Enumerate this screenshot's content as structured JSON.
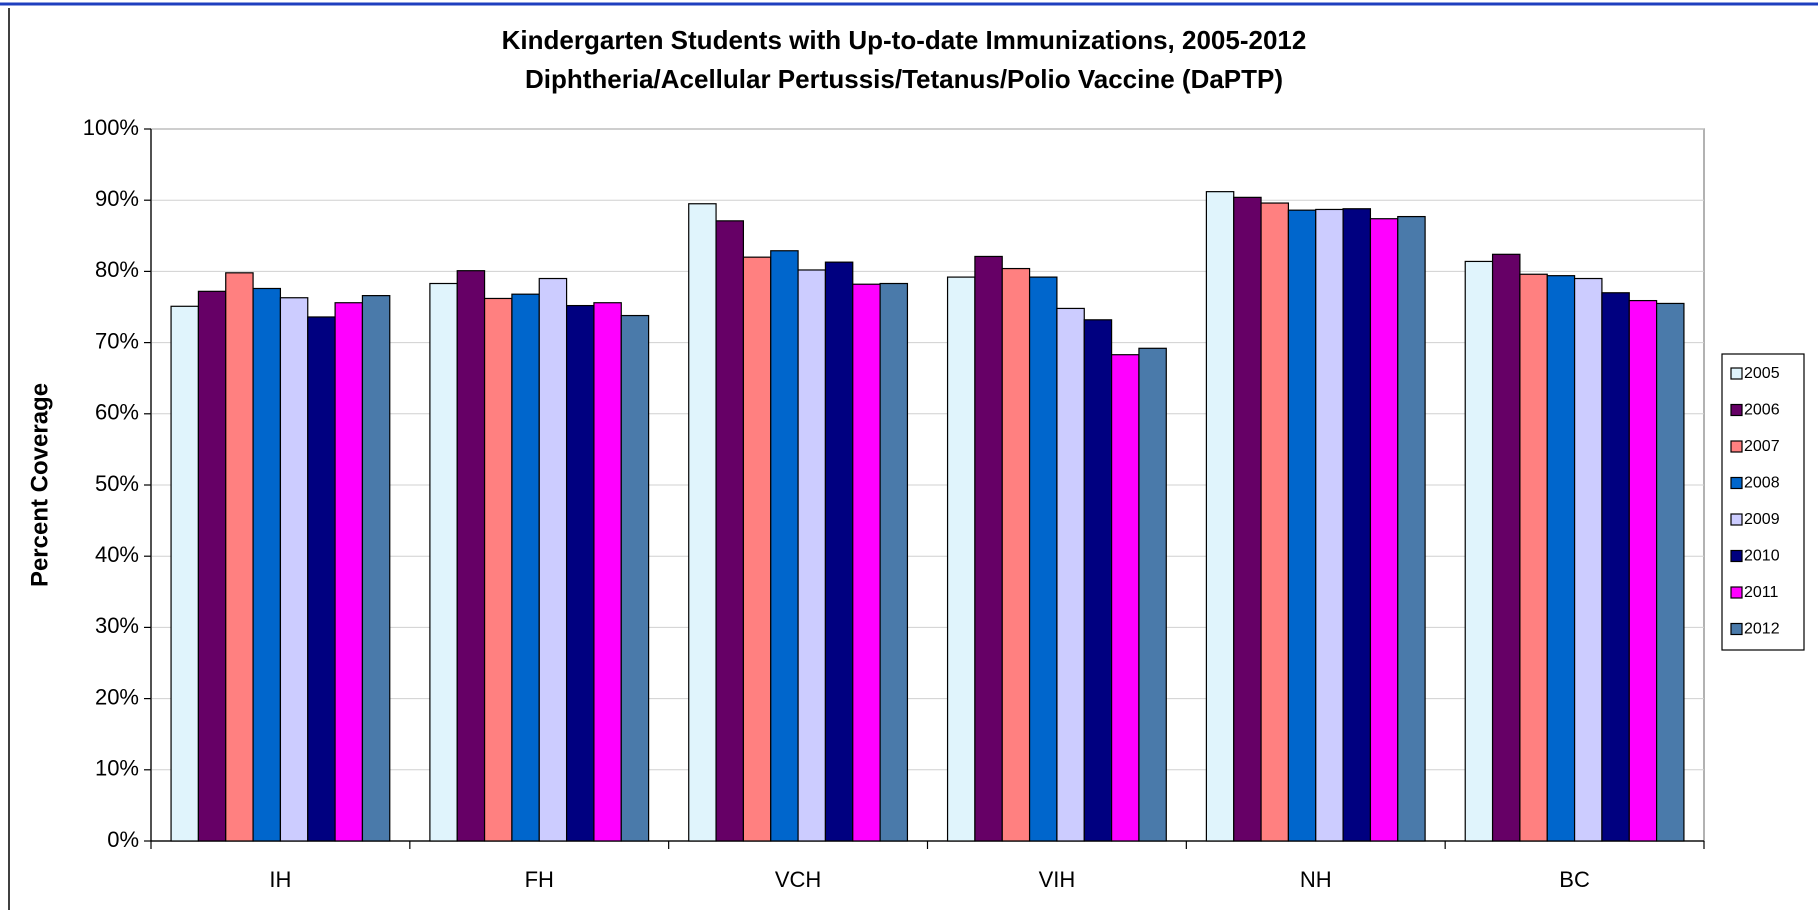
{
  "chart_data": {
    "type": "bar",
    "title": "Kindergarten Students with Up-to-date Immunizations, 2005-2012",
    "subtitle": "Diphtheria/Acellular Pertussis/Tetanus/Polio Vaccine (DaPTP)",
    "y_label": "Percent Coverage",
    "categories": [
      "IH",
      "FH",
      "VCH",
      "VIH",
      "NH",
      "BC"
    ],
    "series": [
      {
        "name": "2005",
        "color": "#e0f4fc",
        "values": [
          75.1,
          78.3,
          89.5,
          79.2,
          91.2,
          81.4
        ]
      },
      {
        "name": "2006",
        "color": "#660066",
        "values": [
          77.2,
          80.1,
          87.1,
          82.1,
          90.4,
          82.4
        ]
      },
      {
        "name": "2007",
        "color": "#ff8080",
        "values": [
          79.8,
          76.2,
          82.0,
          80.4,
          89.6,
          79.6
        ]
      },
      {
        "name": "2008",
        "color": "#0066cc",
        "values": [
          77.6,
          76.8,
          82.9,
          79.2,
          88.6,
          79.4
        ]
      },
      {
        "name": "2009",
        "color": "#ccccff",
        "values": [
          76.3,
          79.0,
          80.2,
          74.8,
          88.7,
          79.0
        ]
      },
      {
        "name": "2010",
        "color": "#000080",
        "values": [
          73.6,
          75.2,
          81.3,
          73.2,
          88.8,
          77.0
        ]
      },
      {
        "name": "2011",
        "color": "#ff00ff",
        "values": [
          75.6,
          75.6,
          78.2,
          68.3,
          87.4,
          75.9
        ]
      },
      {
        "name": "2012",
        "color": "#4a7aaa",
        "values": [
          76.6,
          73.8,
          78.3,
          69.2,
          87.7,
          75.5
        ]
      }
    ],
    "ylim": [
      0,
      100
    ],
    "yticks": [
      {
        "value": 0,
        "label": "0%"
      },
      {
        "value": 10,
        "label": "10%"
      },
      {
        "value": 20,
        "label": "20%"
      },
      {
        "value": 30,
        "label": "30%"
      },
      {
        "value": 40,
        "label": "40%"
      },
      {
        "value": 50,
        "label": "50%"
      },
      {
        "value": 60,
        "label": "60%"
      },
      {
        "value": 70,
        "label": "70%"
      },
      {
        "value": 80,
        "label": "80%"
      },
      {
        "value": 90,
        "label": "90%"
      },
      {
        "value": 100,
        "label": "100%"
      }
    ],
    "grid": true,
    "legend": "right"
  }
}
